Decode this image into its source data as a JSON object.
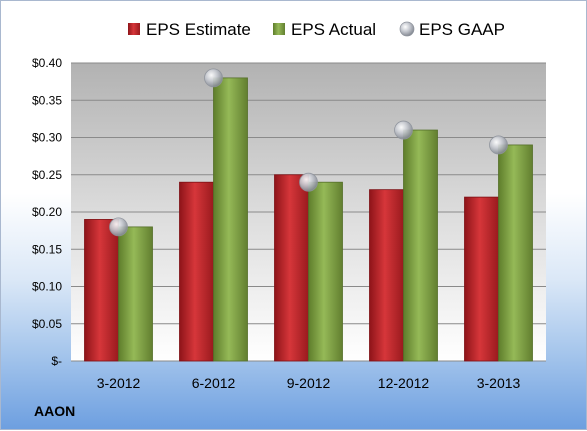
{
  "company": "AAON",
  "colors": {
    "estimate": "#c0262b",
    "actual": "#8cae4a",
    "gaap": "#b8bcc4"
  },
  "chart_data": {
    "type": "bar",
    "categories": [
      "3-2012",
      "6-2012",
      "9-2012",
      "12-2012",
      "3-2013"
    ],
    "series": [
      {
        "name": "EPS Estimate",
        "type": "bar",
        "values": [
          0.19,
          0.24,
          0.25,
          0.23,
          0.22
        ]
      },
      {
        "name": "EPS Actual",
        "type": "bar",
        "values": [
          0.18,
          0.38,
          0.24,
          0.31,
          0.29
        ]
      },
      {
        "name": "EPS GAAP",
        "type": "marker",
        "values": [
          0.18,
          0.38,
          0.24,
          0.31,
          0.29
        ]
      }
    ],
    "ylim": [
      0,
      0.4
    ],
    "yticks": [
      0,
      0.05,
      0.1,
      0.15,
      0.2,
      0.25,
      0.3,
      0.35,
      0.4
    ],
    "ytick_labels": [
      "$-",
      "$0.05",
      "$0.10",
      "$0.15",
      "$0.20",
      "$0.25",
      "$0.30",
      "$0.35",
      "$0.40"
    ],
    "title": "",
    "xlabel": "",
    "ylabel": "",
    "grid": true,
    "legend": "top"
  }
}
